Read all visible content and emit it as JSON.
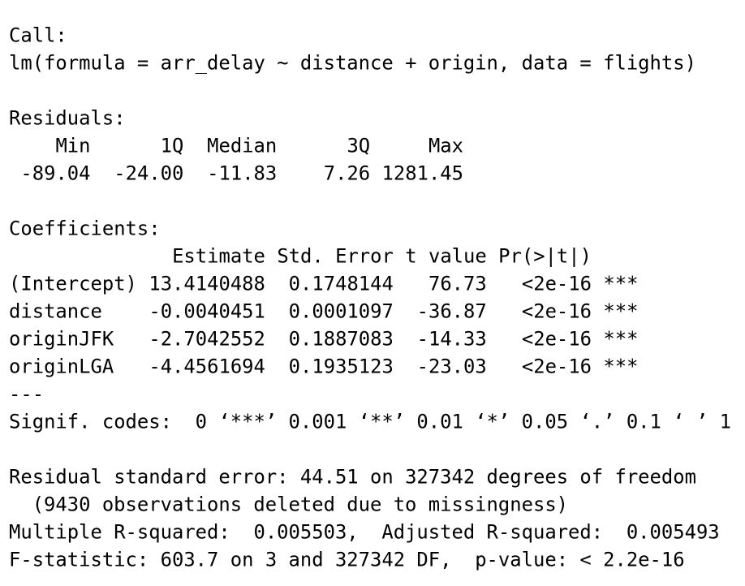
{
  "call": {
    "heading": "Call:",
    "formula": "lm(formula = arr_delay ~ distance + origin, data = flights)"
  },
  "residuals": {
    "heading": "Residuals:",
    "columns": [
      "Min",
      "1Q",
      "Median",
      "3Q",
      "Max"
    ],
    "values": [
      "-89.04",
      "-24.00",
      "-11.83",
      "7.26",
      "1281.45"
    ]
  },
  "coefficients": {
    "heading": "Coefficients:",
    "columns": [
      "Estimate",
      "Std. Error",
      "t value",
      "Pr(>|t|)"
    ],
    "rows": [
      {
        "term": "(Intercept)",
        "cells": [
          "13.4140488",
          "0.1748144",
          "76.73",
          "<2e-16"
        ],
        "signif": "***"
      },
      {
        "term": "distance",
        "cells": [
          "-0.0040451",
          "0.0001097",
          "-36.87",
          "<2e-16"
        ],
        "signif": "***"
      },
      {
        "term": "originJFK",
        "cells": [
          "-2.7042552",
          "0.1887083",
          "-14.33",
          "<2e-16"
        ],
        "signif": "***"
      },
      {
        "term": "originLGA",
        "cells": [
          "-4.4561694",
          "0.1935123",
          "-23.03",
          "<2e-16"
        ],
        "signif": "***"
      }
    ]
  },
  "separator": "---",
  "signif_codes": "Signif. codes:  0 ‘***’ 0.001 ‘**’ 0.01 ‘*’ 0.05 ‘.’ 0.1 ‘ ’ 1",
  "summary": {
    "residual_se": "Residual standard error: 44.51 on 327342 degrees of freedom",
    "missing": "(9430 observations deleted due to missingness)",
    "r_squared": "Multiple R-squared:  0.005503,  Adjusted R-squared:  0.005493",
    "f_statistic": "F-statistic: 603.7 on 3 and 327342 DF,  p-value: < 2.2e-16"
  }
}
